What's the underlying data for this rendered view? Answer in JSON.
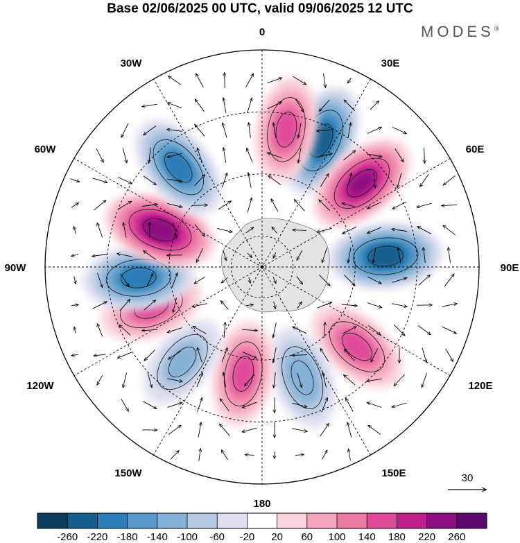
{
  "title": "Base 02/06/2025 00 UTC, valid 09/06/2025 12 UTC",
  "brand": {
    "name": "MODES",
    "mark": "®"
  },
  "longitude_labels": [
    "0",
    "30E",
    "60E",
    "90E",
    "120E",
    "150E",
    "180",
    "150W",
    "120W",
    "90W",
    "60W",
    "30W"
  ],
  "vector_reference": {
    "value": "30"
  },
  "colorbar": {
    "ticks": [
      "-260",
      "-220",
      "-180",
      "-140",
      "-100",
      "-60",
      "-20",
      "20",
      "60",
      "100",
      "140",
      "180",
      "220",
      "260"
    ],
    "colors": [
      "#0c3b5c",
      "#155f8d",
      "#2b7db7",
      "#5699c8",
      "#86b1d6",
      "#b8c9e2",
      "#dfe0ef",
      "#ffffff",
      "#f9d3da",
      "#f4a4bb",
      "#ec78a5",
      "#de4a98",
      "#bf1f8d",
      "#8c1080",
      "#5c0a6e"
    ]
  },
  "anomaly_centers": [
    {
      "lon_label": "approx 25E",
      "lat": -45,
      "value": -240
    },
    {
      "lon_label": "approx 50E",
      "lat": -48,
      "value": 230
    },
    {
      "lon_label": "approx 85E",
      "lat": -50,
      "value": -250
    },
    {
      "lon_label": "approx 130E",
      "lat": -50,
      "value": 150
    },
    {
      "lon_label": "approx 160E",
      "lat": -52,
      "value": -140
    },
    {
      "lon_label": "approx 170W",
      "lat": -55,
      "value": 150
    },
    {
      "lon_label": "approx 140W",
      "lat": -50,
      "value": -110
    },
    {
      "lon_label": "approx 110W",
      "lat": -52,
      "value": 140
    },
    {
      "lon_label": "approx 95W",
      "lat": -50,
      "value": -210
    },
    {
      "lon_label": "approx 70W",
      "lat": -55,
      "value": 250
    },
    {
      "lon_label": "approx 40W",
      "lat": -48,
      "value": -200
    },
    {
      "lon_label": "approx 10E",
      "lat": -45,
      "value": 150
    }
  ]
}
